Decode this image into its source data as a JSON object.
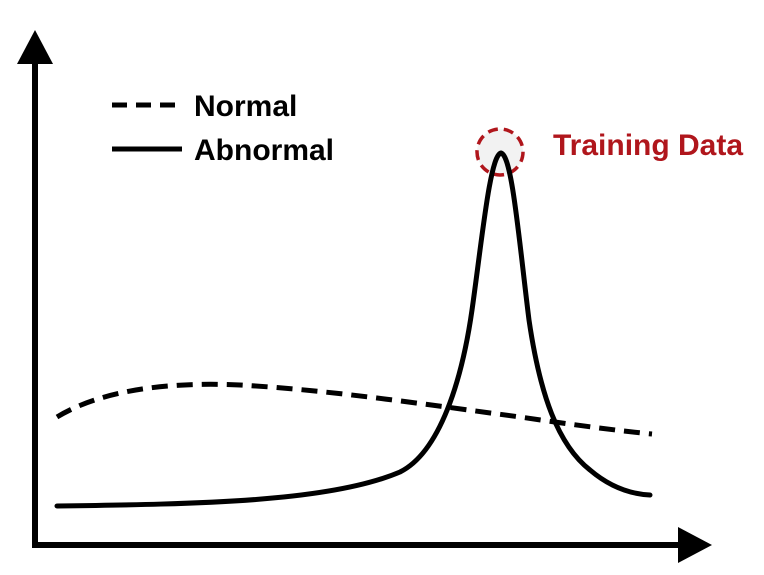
{
  "legend": {
    "normal_label": "Normal",
    "abnormal_label": "Abnormal"
  },
  "annotation": {
    "label": "Training Data"
  },
  "colors": {
    "axes": "#000000",
    "curves": "#000000",
    "highlight": "#b0161c",
    "highlight_fill": "#f2f2f2"
  }
}
